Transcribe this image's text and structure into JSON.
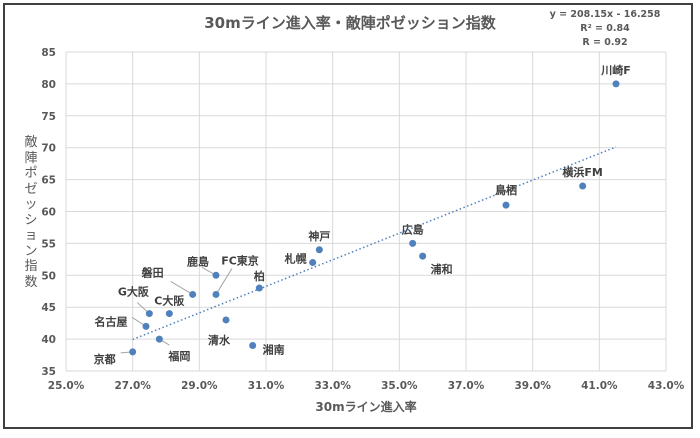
{
  "chart_data": {
    "type": "scatter",
    "title": "30mライン進入率・敵陣ポゼッション指数",
    "xlabel": "30mライン進入率",
    "ylabel": "敵陣ポゼッション指数",
    "xlim": [
      25.0,
      43.0
    ],
    "ylim": [
      35,
      85
    ],
    "x_ticks": [
      "25.0%",
      "27.0%",
      "29.0%",
      "31.0%",
      "33.0%",
      "35.0%",
      "37.0%",
      "39.0%",
      "41.0%",
      "43.0%"
    ],
    "x_tick_values": [
      25,
      27,
      29,
      31,
      33,
      35,
      37,
      39,
      41,
      43
    ],
    "y_ticks": [
      "35",
      "40",
      "45",
      "50",
      "55",
      "60",
      "65",
      "70",
      "75",
      "80",
      "85"
    ],
    "y_tick_values": [
      35,
      40,
      45,
      50,
      55,
      60,
      65,
      70,
      75,
      80,
      85
    ],
    "grid": true,
    "marker_color": "#4f81bd",
    "trendline": {
      "type": "linear",
      "slope": 208.15,
      "intercept": -16.258,
      "x_range": [
        27.0,
        41.5
      ],
      "color": "#4f81bd",
      "equation": "y = 208.15x - 16.258",
      "r2": "R² = 0.84",
      "r": "R = 0.92"
    },
    "points": [
      {
        "label": "川崎F",
        "x": 41.5,
        "y": 80
      },
      {
        "label": "横浜FM",
        "x": 40.5,
        "y": 64
      },
      {
        "label": "鳥栖",
        "x": 38.2,
        "y": 61
      },
      {
        "label": "広島",
        "x": 35.4,
        "y": 55
      },
      {
        "label": "浦和",
        "x": 35.7,
        "y": 53
      },
      {
        "label": "神戸",
        "x": 32.6,
        "y": 54
      },
      {
        "label": "札幌",
        "x": 32.4,
        "y": 52
      },
      {
        "label": "柏",
        "x": 30.8,
        "y": 48
      },
      {
        "label": "鹿島",
        "x": 29.5,
        "y": 50
      },
      {
        "label": "FC東京",
        "x": 29.5,
        "y": 47
      },
      {
        "label": "磐田",
        "x": 28.8,
        "y": 47
      },
      {
        "label": "C大阪",
        "x": 28.1,
        "y": 44
      },
      {
        "label": "G大阪",
        "x": 27.5,
        "y": 44
      },
      {
        "label": "名古屋",
        "x": 27.4,
        "y": 42
      },
      {
        "label": "清水",
        "x": 29.8,
        "y": 43
      },
      {
        "label": "福岡",
        "x": 27.8,
        "y": 40
      },
      {
        "label": "湘南",
        "x": 30.6,
        "y": 39
      },
      {
        "label": "京都",
        "x": 27.0,
        "y": 38
      }
    ]
  }
}
